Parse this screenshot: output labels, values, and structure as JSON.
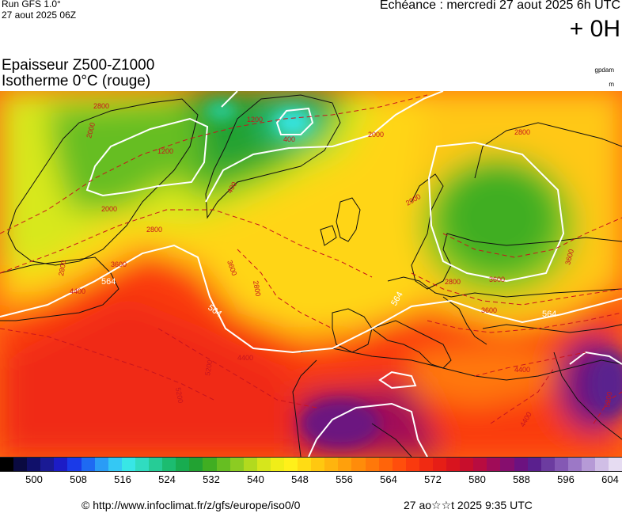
{
  "header": {
    "run_title": "Run GFS 1.0°",
    "run_date": "27 aout 2025 06Z",
    "echeance": "Echéance : mercredi 27 aout 2025 6h UTC",
    "hour": "+ 0H"
  },
  "parameters": {
    "line1": "Epaisseur Z500-Z1000",
    "line2": "Isotherme 0°C (rouge)",
    "unit_top": "gpdam",
    "unit_bottom": "m"
  },
  "map": {
    "white_contour_labels": [
      "564",
      "564",
      "564",
      "564"
    ],
    "red_contour_labels": [
      "2800",
      "2000",
      "1200",
      "400",
      "1200",
      "400",
      "2000",
      "2000",
      "2800",
      "3600",
      "2800",
      "4400",
      "2800",
      "3600",
      "5200",
      "5200",
      "4400",
      "2800",
      "3600",
      "2000",
      "2800",
      "3600",
      "4400",
      "3600",
      "4400",
      "5200"
    ]
  },
  "colorbar": {
    "colors": [
      "#000000",
      "#0a0a40",
      "#10106a",
      "#1a1a94",
      "#1c1cc6",
      "#1a3ae8",
      "#1e6af2",
      "#2a9cf6",
      "#34c8f4",
      "#38e6e6",
      "#30dcc0",
      "#26cc96",
      "#1cbc70",
      "#18ac50",
      "#22a232",
      "#40ae22",
      "#66be22",
      "#8ccc22",
      "#b2da1e",
      "#d6e61c",
      "#f0ee18",
      "#fff01a",
      "#ffdc14",
      "#ffc810",
      "#ffb40e",
      "#ffa00c",
      "#ff8c0a",
      "#ff780a",
      "#ff640a",
      "#ff4e0c",
      "#fa3a0e",
      "#f02a12",
      "#e61e16",
      "#d8141e",
      "#c80e2c",
      "#b80c40",
      "#a00c58",
      "#860e6e",
      "#6c1280",
      "#5a208e",
      "#6c3ca0",
      "#8458b4",
      "#9c78c6",
      "#b69ad6",
      "#d0bee6",
      "#e6dcf2"
    ],
    "scale_labels": [
      "500",
      "508",
      "516",
      "524",
      "532",
      "540",
      "548",
      "556",
      "564",
      "572",
      "580",
      "588",
      "596",
      "604"
    ]
  },
  "footer": {
    "copyright": "© http://www.infoclimat.fr/z/gfs/europe/iso0/0",
    "timestamp": "27 ao☆☆t 2025  9:35 UTC"
  }
}
